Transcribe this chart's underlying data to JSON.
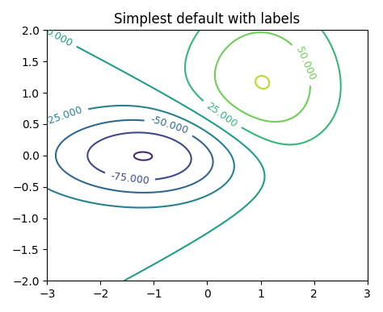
{
  "title": "Simplest default with labels",
  "xlim": [
    -3,
    3
  ],
  "ylim": [
    -2,
    2
  ],
  "x_range": [
    -3,
    3
  ],
  "y_range": [
    -2,
    2
  ],
  "nx": 300,
  "ny": 300,
  "cmap": "viridis",
  "figsize": [
    4.74,
    3.87
  ],
  "dpi": 100,
  "inline": true,
  "fontsize": 9
}
